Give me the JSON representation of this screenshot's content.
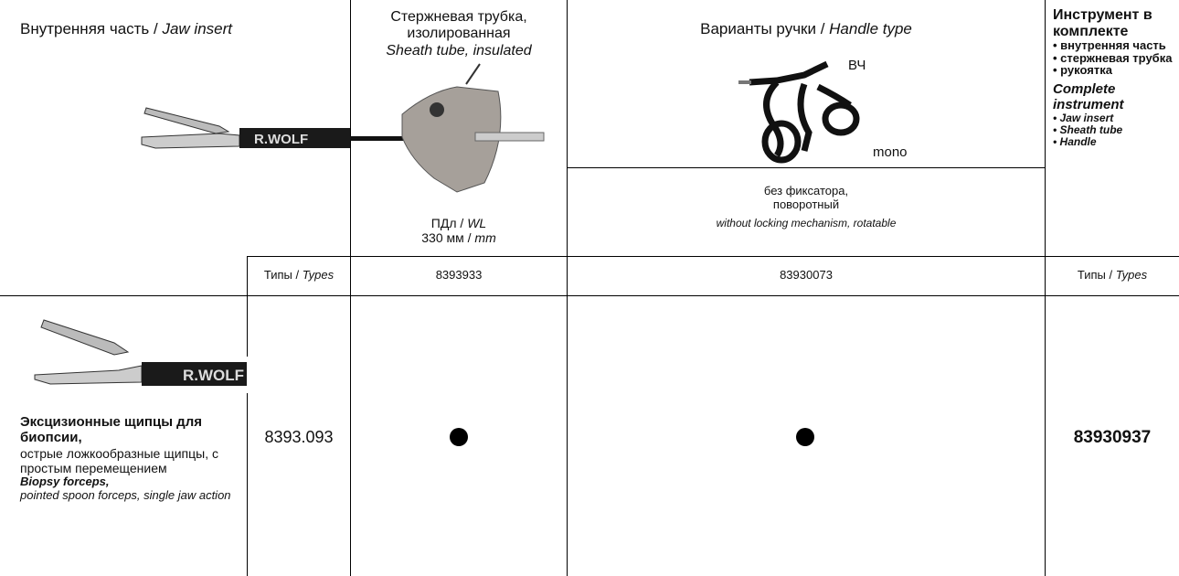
{
  "header": {
    "jaw_insert": {
      "ru": "Внутренняя часть / ",
      "en": "Jaw insert",
      "brand": "R.WOLF"
    },
    "sheath": {
      "ru": [
        "Стержневая трубка,",
        "изолированная"
      ],
      "en": "Sheath tube, insulated",
      "wl_ru": "ПДл / ",
      "wl_en": "WL",
      "length_ru": "330 мм / ",
      "length_en": "mm"
    },
    "handle": {
      "ru": "Варианты ручки / ",
      "en": "Handle type",
      "hf_label": "ВЧ",
      "mono_label": "mono",
      "desc_ru": [
        "без фиксатора,",
        "поворотный"
      ],
      "desc_en": "without locking mechanism, rotatable"
    },
    "complete": {
      "ru_title": "Инструмент в комплекте",
      "ru_items": [
        "• внутренняя часть",
        "• стержневая трубка",
        "• рукоятка"
      ],
      "en_title": "Complete instrument",
      "en_items": [
        "• Jaw insert",
        "• Sheath tube",
        "• Handle"
      ]
    },
    "types_label": {
      "ru": "Типы / ",
      "en": "Types"
    }
  },
  "type_numbers": {
    "sheath": "8393933",
    "handle": "83930073"
  },
  "rows": [
    {
      "name_ru": "Эксцизионные щипцы для биопсии,",
      "desc_ru": "острые ложкообразные щипцы, с простым перемещением",
      "name_en": "Biopsy forceps,",
      "desc_en": "pointed spoon forceps, single jaw action",
      "brand": "R.WOLF",
      "insert_number": "8393.093",
      "complete_number": "83930937"
    }
  ]
}
